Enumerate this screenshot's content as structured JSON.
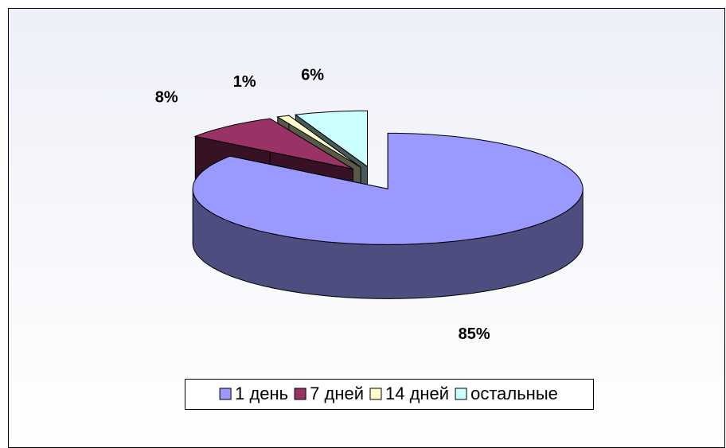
{
  "chart_data": {
    "type": "pie",
    "categories": [
      "1 день",
      "7 дней",
      "14 дней",
      "остальные"
    ],
    "values": [
      85,
      8,
      1,
      6
    ],
    "value_labels": [
      "85%",
      "8%",
      "1%",
      "6%"
    ],
    "colors": [
      "#9999ff",
      "#993366",
      "#ffffcc",
      "#ccffff"
    ],
    "legend": "bottom"
  }
}
